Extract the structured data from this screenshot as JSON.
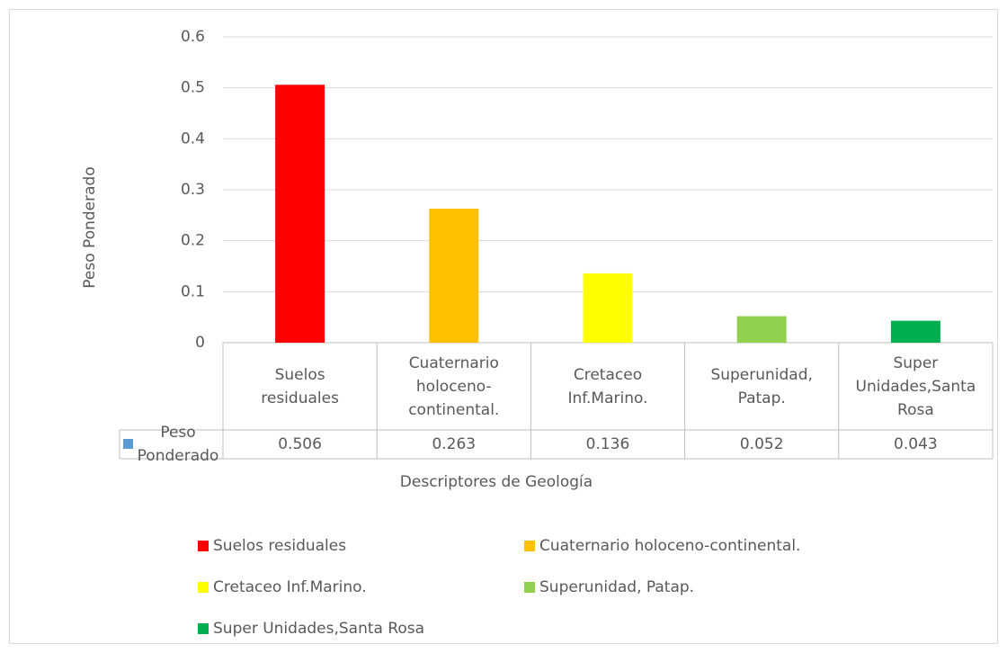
{
  "chart_data": {
    "type": "bar",
    "y_axis_label": "Peso Ponderado",
    "x_axis_label": "Descriptores de Geología",
    "categories": [
      "Suelos residuales",
      "Cuaternario holoceno-continental.",
      "Cretaceo Inf.Marino.",
      "Superunidad, Patap.",
      "Super Unidades,Santa Rosa"
    ],
    "series": [
      {
        "name": "Peso Ponderado",
        "color": "#5b9bd5",
        "values": [
          0.506,
          0.263,
          0.136,
          0.052,
          0.043
        ],
        "colors": [
          "#ff0000",
          "#ffc000",
          "#ffff00",
          "#92d050",
          "#00b050"
        ]
      }
    ],
    "ylim": [
      0,
      0.6
    ],
    "yticks": [
      0,
      0.1,
      0.2,
      0.3,
      0.4,
      0.5,
      0.6
    ],
    "grid": true,
    "data_table": true,
    "legend": "bottom"
  }
}
